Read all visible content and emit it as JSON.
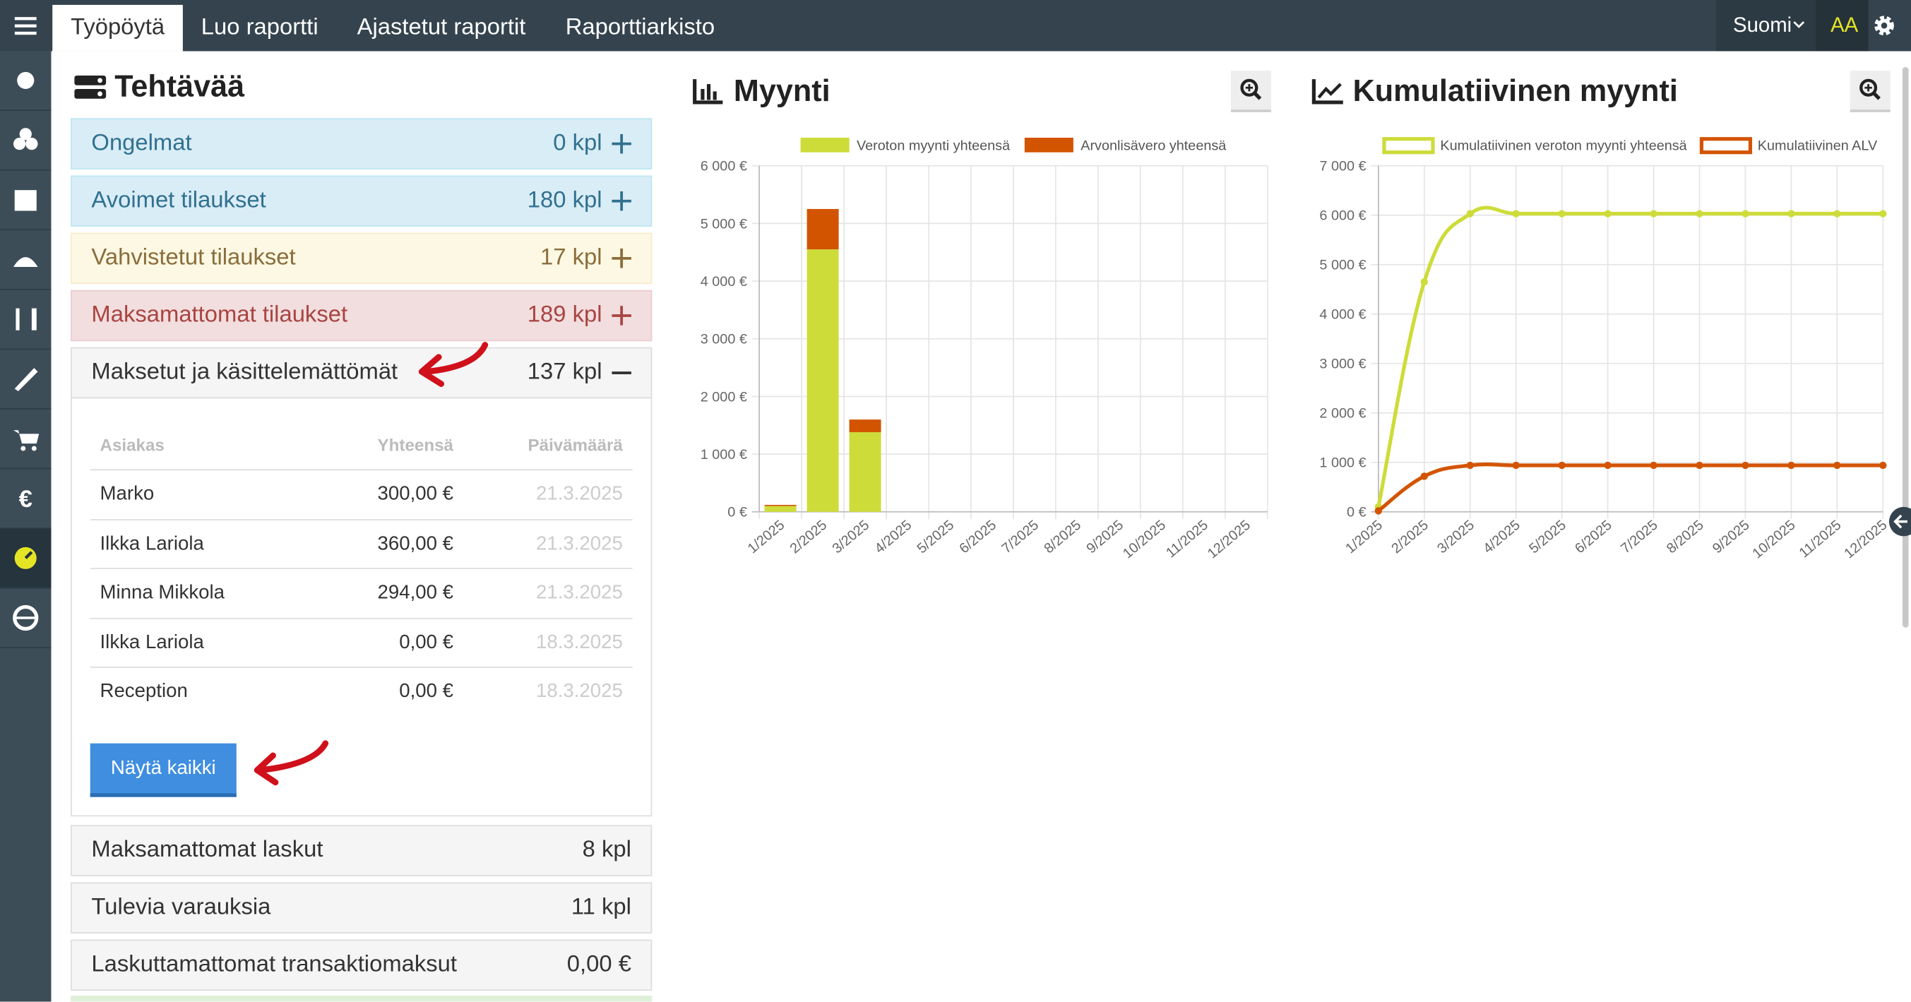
{
  "nav": {
    "tabs": [
      "Työpöytä",
      "Luo raportti",
      "Ajastetut raportit",
      "Raporttiarkisto"
    ],
    "language": "Suomi",
    "font_size": "AA"
  },
  "tasks": {
    "title": "Tehtävää",
    "items": [
      {
        "label": "Ongelmat",
        "count": "0 kpl"
      },
      {
        "label": "Avoimet tilaukset",
        "count": "180 kpl"
      },
      {
        "label": "Vahvistetut tilaukset",
        "count": "17 kpl"
      },
      {
        "label": "Maksamattomat tilaukset",
        "count": "189 kpl"
      }
    ],
    "expanded": {
      "label": "Maksetut ja käsittelemättömät",
      "count": "137 kpl",
      "columns": [
        "Asiakas",
        "Yhteensä",
        "Päivämäärä"
      ],
      "rows": [
        [
          "Marko",
          "300,00 €",
          "21.3.2025"
        ],
        [
          "Ilkka Lariola",
          "360,00 €",
          "21.3.2025"
        ],
        [
          "Minna Mikkola",
          "294,00 €",
          "21.3.2025"
        ],
        [
          "Ilkka Lariola",
          "0,00 €",
          "18.3.2025"
        ],
        [
          "Reception",
          "0,00 €",
          "18.3.2025"
        ]
      ],
      "button": "Näytä kaikki"
    },
    "more": [
      {
        "label": "Maksamattomat laskut",
        "count": "8 kpl"
      },
      {
        "label": "Tulevia varauksia",
        "count": "11 kpl"
      },
      {
        "label": "Laskuttamattomat transaktiomaksut",
        "count": "0,00 €"
      }
    ]
  },
  "chart_data": [
    {
      "type": "bar",
      "stacked": true,
      "title": "Myynti",
      "categories": [
        "1/2025",
        "2/2025",
        "3/2025",
        "4/2025",
        "5/2025",
        "6/2025",
        "7/2025",
        "8/2025",
        "9/2025",
        "10/2025",
        "11/2025",
        "12/2025"
      ],
      "series": [
        {
          "name": "Veroton myynti yhteensä",
          "color": "#cddc39",
          "values": [
            100,
            4550,
            1380,
            0,
            0,
            0,
            0,
            0,
            0,
            0,
            0,
            0
          ]
        },
        {
          "name": "Arvonlisävero yhteensä",
          "color": "#d35400",
          "values": [
            20,
            700,
            220,
            0,
            0,
            0,
            0,
            0,
            0,
            0,
            0,
            0
          ]
        }
      ],
      "ylim": [
        0,
        6000
      ],
      "yticks": [
        {
          "value": 0,
          "label": "0 €"
        },
        {
          "value": 1000,
          "label": "1 000 €"
        },
        {
          "value": 2000,
          "label": "2 000 €"
        },
        {
          "value": 3000,
          "label": "3 000 €"
        },
        {
          "value": 4000,
          "label": "4 000 €"
        },
        {
          "value": 5000,
          "label": "5 000 €"
        },
        {
          "value": 6000,
          "label": "6 000 €"
        }
      ],
      "grid": true,
      "legend": "top"
    },
    {
      "type": "line",
      "title": "Kumulatiivinen myynti",
      "categories": [
        "1/2025",
        "2/2025",
        "3/2025",
        "4/2025",
        "5/2025",
        "6/2025",
        "7/2025",
        "8/2025",
        "9/2025",
        "10/2025",
        "11/2025",
        "12/2025"
      ],
      "series": [
        {
          "name": "Kumulatiivinen veroton myynti yhteensä",
          "color": "#cddc39",
          "values": [
            100,
            4650,
            6030,
            6030,
            6030,
            6030,
            6030,
            6030,
            6030,
            6030,
            6030,
            6030
          ]
        },
        {
          "name": "Kumulatiivinen ALV",
          "color": "#d35400",
          "values": [
            20,
            720,
            940,
            940,
            940,
            940,
            940,
            940,
            940,
            940,
            940,
            940
          ]
        }
      ],
      "ylim": [
        0,
        7000
      ],
      "yticks": [
        {
          "value": 0,
          "label": "0 €"
        },
        {
          "value": 1000,
          "label": "1 000 €"
        },
        {
          "value": 2000,
          "label": "2 000 €"
        },
        {
          "value": 3000,
          "label": "3 000 €"
        },
        {
          "value": 4000,
          "label": "4 000 €"
        },
        {
          "value": 5000,
          "label": "5 000 €"
        },
        {
          "value": 6000,
          "label": "6 000 €"
        },
        {
          "value": 7000,
          "label": "7 000 €"
        }
      ],
      "grid": true,
      "legend": "top"
    }
  ]
}
